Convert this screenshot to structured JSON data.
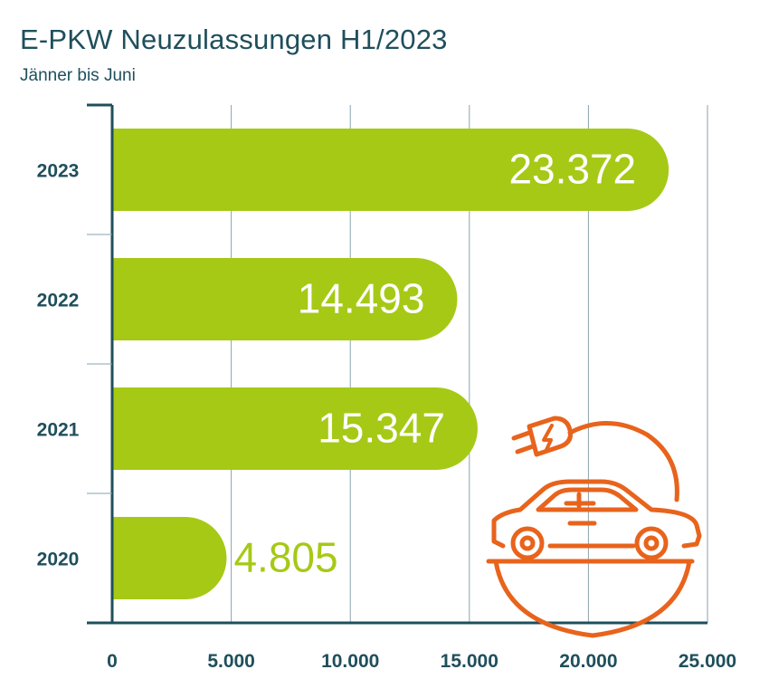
{
  "colors": {
    "bar": "#a6c916",
    "title": "#1f4f5c",
    "axis": "#1f4f5c",
    "grid": "#8aa3ad",
    "value_inside": "#ffffff",
    "value_outside": "#a6c916",
    "icon": "#e8631c"
  },
  "chart_data": {
    "type": "bar",
    "orientation": "horizontal",
    "title": "E-PKW Neuzulassungen H1/2023",
    "subtitle": "Jänner bis Juni",
    "categories": [
      "2023",
      "2022",
      "2021",
      "2020"
    ],
    "values": [
      23372,
      14493,
      15347,
      4805
    ],
    "value_labels": [
      "23.372",
      "14.493",
      "15.347",
      "4.805"
    ],
    "xlim": [
      0,
      25000
    ],
    "xticks": [
      0,
      5000,
      10000,
      15000,
      20000,
      25000
    ],
    "xtick_labels": [
      "0",
      "5.000",
      "10.000",
      "15.000",
      "20.000",
      "25.000"
    ],
    "grid": "vertical",
    "icon": "electric-car-plug-icon"
  }
}
